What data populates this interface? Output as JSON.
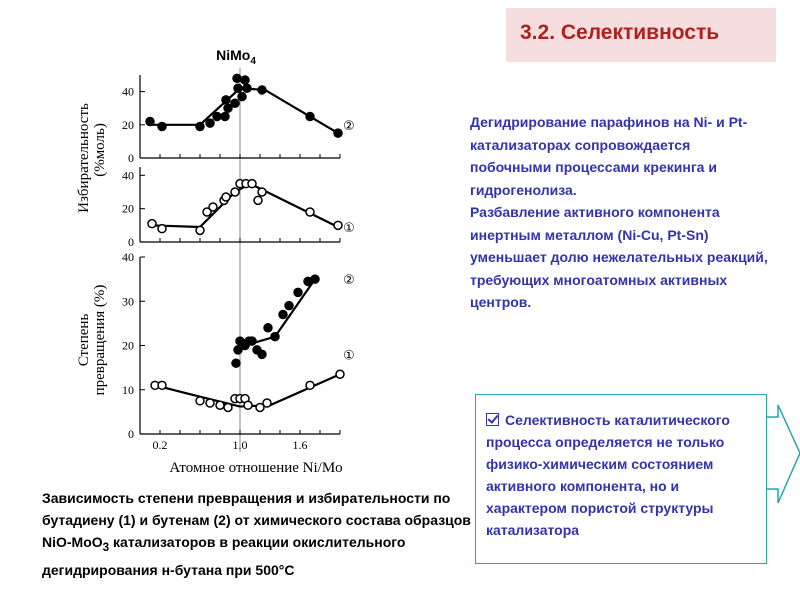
{
  "header": {
    "title": "3.2. Селективность"
  },
  "description": {
    "para1": "Дегидрирование парафинов на Ni- и Pt- катализаторах сопровождается побочными процессами крекинга и гидрогенолиза.",
    "para2": "Разбавление активного компонента инертным металлом (Ni-Cu, Pt-Sn) уменьшает долю нежелательных реакций, требующих многоатомных активных центров."
  },
  "caption": {
    "before": "Зависимость степени превращения и избирательности по бутадиену (1) и бутенам (2) от химического состава образцов NiO-MoO",
    "sub": "3",
    "after": " катализаторов в реакции окислительного дегидрирования н-бутана при 500°C"
  },
  "conclusion": {
    "text": "Селективность каталитического процесса определяется не только физико-химическим состоянием активного компонента, но и характером пористой структуры катализатора",
    "icon": "checkbox-icon"
  },
  "colors": {
    "title_bg": "#f6dede",
    "title_text": "#b02020",
    "body_text": "#3333aa",
    "box_border": "#2aa5a5",
    "arrow_fill": "#ffffff"
  },
  "chart_data": {
    "type": "scatter",
    "composite": true,
    "marker_label": {
      "main": "NiMo",
      "sub": "4"
    },
    "marker_x": 1.0,
    "xlabel": "Атомное отношение Ni/Mo",
    "xticks": [
      "0.2",
      "1.0",
      "1.6"
    ],
    "xtick_values": [
      0.2,
      1.0,
      1.6
    ],
    "xlim": [
      0.0,
      2.0
    ],
    "panels": [
      {
        "id": "selectivity-2",
        "ylim": [
          0,
          50
        ],
        "yticks": [
          0,
          20,
          40
        ],
        "ytick_labels": [
          "0",
          "20",
          "40"
        ],
        "series": [
          {
            "name": "②",
            "marker": "filled",
            "x": [
              0.1,
              0.22,
              0.6,
              0.7,
              0.77,
              0.85,
              0.86,
              0.88,
              0.95,
              0.97,
              0.98,
              1.02,
              1.05,
              1.07,
              1.22,
              1.7,
              1.98
            ],
            "y": [
              22,
              19,
              19,
              21,
              25,
              25,
              35,
              30,
              33,
              48,
              42,
              37,
              47,
              42,
              41,
              25,
              15
            ],
            "line_x": [
              0.1,
              0.6,
              1.0,
              1.25,
              1.98
            ],
            "line_y": [
              20,
              20,
              42,
              41,
              15
            ]
          }
        ]
      },
      {
        "id": "selectivity-1",
        "ylim": [
          0,
          45
        ],
        "yticks": [
          0,
          20,
          40
        ],
        "ytick_labels": [
          "0",
          "20",
          "40"
        ],
        "series": [
          {
            "name": "①",
            "marker": "open",
            "x": [
              0.12,
              0.22,
              0.6,
              0.67,
              0.73,
              0.84,
              0.86,
              0.95,
              1.0,
              1.06,
              1.12,
              1.18,
              1.22,
              1.7,
              1.98
            ],
            "y": [
              11,
              8,
              7,
              18,
              21,
              25,
              27,
              30,
              35,
              35,
              35,
              25,
              30,
              18,
              10
            ],
            "line_x": [
              0.1,
              0.6,
              0.95,
              1.1,
              1.98
            ],
            "line_y": [
              10,
              9,
              30,
              35,
              9
            ]
          }
        ]
      },
      {
        "id": "conversion",
        "ylim": [
          0,
          40
        ],
        "yticks": [
          0,
          10,
          20,
          30,
          40
        ],
        "ytick_labels": [
          "0",
          "10",
          "20",
          "30",
          "40"
        ],
        "series": [
          {
            "name": "②",
            "marker": "filled",
            "x": [
              0.96,
              0.98,
              1.0,
              1.05,
              1.09,
              1.12,
              1.17,
              1.22,
              1.28,
              1.35,
              1.43,
              1.49,
              1.58,
              1.68,
              1.75
            ],
            "y": [
              16,
              19,
              21,
              20,
              21,
              21,
              19,
              18,
              24,
              22,
              27,
              29,
              32,
              34.5,
              35
            ],
            "line_x": [
              0.96,
              1.2,
              1.35,
              1.75
            ],
            "line_y": [
              19.5,
              21,
              22,
              35
            ]
          },
          {
            "name": "①",
            "marker": "open",
            "x": [
              0.15,
              0.22,
              0.6,
              0.7,
              0.8,
              0.88,
              0.95,
              1.0,
              1.05,
              1.08,
              1.2,
              1.27,
              1.7,
              2.0
            ],
            "y": [
              11,
              11,
              7.5,
              7,
              6.5,
              6,
              8,
              8,
              8,
              6.5,
              6,
              7,
              11,
              13.5
            ],
            "line_x": [
              0.15,
              0.5,
              1.0,
              1.3,
              2.0
            ],
            "line_y": [
              11,
              9,
              6.2,
              6.5,
              13.5
            ]
          }
        ]
      }
    ],
    "ylabel_top": [
      "Избирательность",
      "(%моль)"
    ],
    "ylabel_bottom": [
      "Степень",
      "превращения (%)"
    ]
  }
}
